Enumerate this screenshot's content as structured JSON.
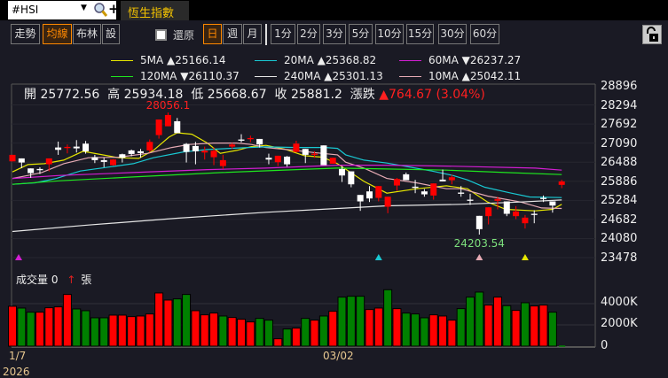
{
  "toolbar": {
    "symbol": "#HSI",
    "tab_title": "恆生指數",
    "view_buttons": [
      {
        "label": "走勢",
        "active": false
      },
      {
        "label": "均線",
        "active": true
      },
      {
        "label": "布林",
        "active": false
      },
      {
        "label": "設",
        "active": false
      }
    ],
    "restore_label": "還原",
    "restore_checked": false,
    "period_buttons": [
      {
        "label": "日",
        "active": true
      },
      {
        "label": "週",
        "active": false
      },
      {
        "label": "月",
        "active": false
      }
    ],
    "minute_buttons": [
      "1分",
      "2分",
      "3分",
      "5分",
      "10分",
      "15分",
      "30分",
      "60分"
    ]
  },
  "legend": [
    {
      "label": "5MA",
      "dir": "▲",
      "value": "25166.14",
      "color": "#e6e600"
    },
    {
      "label": "20MA",
      "dir": "▲",
      "value": "25368.82",
      "color": "#19c8d2"
    },
    {
      "label": "60MA",
      "dir": "▼",
      "value": "26237.27",
      "color": "#d21ed2"
    },
    {
      "label": "120MA",
      "dir": "▼",
      "value": "26110.37",
      "color": "#1ee61e"
    },
    {
      "label": "240MA",
      "dir": "▲",
      "value": "25301.13",
      "color": "#e6e6e6"
    },
    {
      "label": "10MA",
      "dir": "▲",
      "value": "25042.11",
      "color": "#e6aab4"
    }
  ],
  "info": {
    "open_label": "開",
    "open": "25772.56",
    "high_label": "高",
    "high": "25934.18",
    "low_label": "低",
    "low": "25668.67",
    "close_label": "收",
    "close": "25881.2",
    "change_label": "漲跌",
    "change": "▲764.67 (3.04%)"
  },
  "volume": {
    "label": "成交量",
    "value": "0",
    "arrow": "↑",
    "unit": "張"
  },
  "colors": {
    "up": "#ff0000",
    "down": "#ffffff",
    "vol_up": "#ff0000",
    "vol_down": "#008000"
  },
  "chart_data": {
    "type": "candlestick",
    "price_ticks": [
      "28896",
      "28294",
      "27692",
      "27090",
      "26488",
      "25886",
      "25284",
      "24682",
      "24080",
      "23478"
    ],
    "price_range": [
      23478,
      28896
    ],
    "volume_ticks": [
      "4000K",
      "2000K",
      "0"
    ],
    "volume_range": [
      0,
      6000
    ],
    "x_labels": [
      {
        "index": 0,
        "label": "1/7"
      },
      {
        "index": 36,
        "label": "03/02"
      }
    ],
    "year_label": "2026",
    "annotations": [
      {
        "index": 17,
        "text": "28056.1",
        "color": "#ff2020",
        "pos": "above"
      },
      {
        "index": 51,
        "text": "24203.54",
        "color": "#7de07d",
        "pos": "below"
      }
    ],
    "markers": [
      {
        "index": 0,
        "color": "#d21ed2"
      },
      {
        "index": 40,
        "color": "#19c8d2"
      },
      {
        "index": 51,
        "color": "#e6aab4"
      },
      {
        "index": 56,
        "color": "#e6e600"
      }
    ],
    "ohlc": [
      [
        26515,
        26720,
        26515,
        26720
      ],
      [
        26608,
        26608,
        26301,
        26478
      ],
      [
        26292,
        26292,
        25995,
        26143
      ],
      [
        26274,
        26329,
        26116,
        26236
      ],
      [
        26422,
        26608,
        26199,
        26608
      ],
      [
        26952,
        27138,
        26720,
        26878
      ],
      [
        26934,
        27046,
        26767,
        26971
      ],
      [
        26980,
        27185,
        26794,
        26925
      ],
      [
        27073,
        27157,
        26757,
        26832
      ],
      [
        26646,
        26720,
        26460,
        26553
      ],
      [
        26553,
        26627,
        26329,
        26497
      ],
      [
        26395,
        26580,
        26380,
        26571
      ],
      [
        26739,
        26757,
        26478,
        26627
      ],
      [
        26860,
        26887,
        26674,
        26748
      ],
      [
        26832,
        26906,
        26627,
        26776
      ],
      [
        26860,
        27204,
        26794,
        27129
      ],
      [
        27343,
        27836,
        27232,
        27836
      ],
      [
        27622,
        28056,
        27622,
        27976
      ],
      [
        27780,
        27883,
        27408,
        27408
      ],
      [
        27064,
        27092,
        26478,
        26813
      ],
      [
        26999,
        27129,
        26422,
        26832
      ],
      [
        26794,
        26980,
        26571,
        26850
      ],
      [
        26646,
        26952,
        26395,
        26850
      ],
      [
        26367,
        26720,
        26274,
        26553
      ],
      [
        26980,
        27092,
        26906,
        27046
      ],
      [
        27204,
        27371,
        27111,
        27166
      ],
      [
        27213,
        27325,
        27120,
        27250
      ],
      [
        27222,
        27222,
        26952,
        27046
      ],
      [
        26627,
        26757,
        26422,
        26571
      ],
      [
        26488,
        26692,
        26367,
        26692
      ],
      [
        26664,
        26683,
        26348,
        26422
      ],
      [
        26813,
        27166,
        26794,
        27073
      ],
      [
        26906,
        26906,
        26460,
        26720
      ],
      [
        26720,
        26832,
        26627,
        26757
      ],
      [
        27018,
        27018,
        26395,
        26395
      ],
      [
        26441,
        26627,
        26441,
        26627
      ],
      [
        26274,
        26367,
        25864,
        26069
      ],
      [
        26199,
        26199,
        25697,
        25790
      ],
      [
        25455,
        25455,
        24953,
        25251
      ],
      [
        25567,
        25734,
        25232,
        25344
      ],
      [
        25362,
        25734,
        25251,
        25734
      ],
      [
        25083,
        25399,
        24879,
        25399
      ],
      [
        25753,
        25990,
        25585,
        25957
      ],
      [
        26106,
        26162,
        25920,
        25920
      ],
      [
        25716,
        25930,
        25511,
        25678
      ],
      [
        25567,
        25641,
        25399,
        25474
      ],
      [
        25437,
        25818,
        25306,
        25818
      ],
      [
        25939,
        26255,
        25883,
        25883
      ],
      [
        25920,
        26088,
        25790,
        26013
      ],
      [
        25530,
        25734,
        25399,
        25492
      ],
      [
        25306,
        25492,
        25139,
        25269
      ],
      [
        24795,
        24795,
        24204,
        24376
      ],
      [
        24786,
        25065,
        24525,
        25065
      ],
      [
        25269,
        25399,
        24999,
        25325
      ],
      [
        25251,
        25251,
        24786,
        24860
      ],
      [
        24786,
        25102,
        24693,
        24934
      ],
      [
        24562,
        24823,
        24395,
        24739
      ],
      [
        24860,
        24972,
        24562,
        24823
      ],
      [
        25362,
        25437,
        25232,
        25325
      ],
      [
        25251,
        25251,
        24897,
        25120
      ],
      [
        25772.56,
        25934.18,
        25668.67,
        25881.2
      ]
    ],
    "volume_k": [
      3753,
      3586,
      3197,
      3197,
      3614,
      3697,
      4865,
      3503,
      3336,
      2669,
      2669,
      2919,
      2919,
      2780,
      2836,
      3030,
      5004,
      4337,
      4448,
      4865,
      3336,
      2947,
      3114,
      2836,
      2697,
      2530,
      2280,
      2613,
      2446,
      695,
      1612,
      1696,
      2613,
      2446,
      2836,
      3280,
      4615,
      4698,
      4698,
      3447,
      3586,
      5310,
      3531,
      3114,
      3030,
      2669,
      2947,
      2836,
      2446,
      3531,
      4615,
      5087,
      3864,
      4615,
      3809,
      3364,
      4087,
      3781,
      3864,
      3197,
      0
    ],
    "volume_up": [
      1,
      0,
      0,
      1,
      1,
      1,
      1,
      0,
      0,
      0,
      0,
      1,
      1,
      1,
      1,
      1,
      1,
      1,
      0,
      0,
      1,
      1,
      1,
      0,
      1,
      1,
      1,
      0,
      0,
      1,
      0,
      1,
      0,
      1,
      0,
      1,
      0,
      0,
      0,
      1,
      1,
      0,
      1,
      0,
      0,
      0,
      1,
      1,
      1,
      0,
      0,
      0,
      1,
      1,
      0,
      1,
      0,
      1,
      1,
      0,
      0
    ],
    "ma": [
      {
        "name": "5MA",
        "color": "#e6e600",
        "points": [
          [
            0,
            26181
          ],
          [
            1.7,
            26413
          ],
          [
            3.5,
            26441
          ],
          [
            5.6,
            26553
          ],
          [
            7.7,
            26832
          ],
          [
            11.6,
            26627
          ],
          [
            13.8,
            26608
          ],
          [
            15.4,
            26860
          ],
          [
            17.1,
            27278
          ],
          [
            18,
            27417
          ],
          [
            19.6,
            27371
          ],
          [
            21.3,
            27092
          ],
          [
            22.7,
            26767
          ],
          [
            24.5,
            26860
          ],
          [
            26.1,
            26980
          ],
          [
            27.7,
            27018
          ],
          [
            29.7,
            26906
          ],
          [
            31.9,
            26692
          ],
          [
            33.9,
            26646
          ],
          [
            35.5,
            26441
          ],
          [
            38.4,
            25883
          ],
          [
            40.9,
            25511
          ],
          [
            44.2,
            25651
          ],
          [
            47.4,
            25744
          ],
          [
            49.7,
            25651
          ],
          [
            51.9,
            25232
          ],
          [
            53.9,
            25000
          ],
          [
            57.1,
            24953
          ],
          [
            59,
            25000
          ],
          [
            60,
            25158
          ]
        ]
      },
      {
        "name": "10MA",
        "color": "#e6aab4",
        "points": [
          [
            0,
            25976
          ],
          [
            1.7,
            26069
          ],
          [
            3.2,
            26162
          ],
          [
            5.6,
            26441
          ],
          [
            8.3,
            26627
          ],
          [
            11.6,
            26646
          ],
          [
            14.8,
            26767
          ],
          [
            17.4,
            26952
          ],
          [
            19.3,
            27046
          ],
          [
            21.9,
            27092
          ],
          [
            24.5,
            27092
          ],
          [
            26.1,
            27046
          ],
          [
            27.7,
            26952
          ],
          [
            30.9,
            26860
          ],
          [
            32.9,
            26794
          ],
          [
            35.5,
            26720
          ],
          [
            36.4,
            26488
          ],
          [
            38.4,
            26302
          ],
          [
            40.9,
            25976
          ],
          [
            44.2,
            25836
          ],
          [
            47.4,
            25651
          ],
          [
            49,
            25651
          ],
          [
            51.9,
            25418
          ],
          [
            55.5,
            25232
          ],
          [
            57.8,
            25046
          ],
          [
            60,
            25027
          ]
        ]
      },
      {
        "name": "20MA",
        "color": "#19c8d2",
        "points": [
          [
            0,
            25790
          ],
          [
            2.5,
            25837
          ],
          [
            4.8,
            25976
          ],
          [
            7.4,
            26209
          ],
          [
            10.9,
            26348
          ],
          [
            13.2,
            26441
          ],
          [
            15.4,
            26627
          ],
          [
            18.7,
            26813
          ],
          [
            21.3,
            26887
          ],
          [
            25.8,
            26952
          ],
          [
            27.7,
            26971
          ],
          [
            31,
            26952
          ],
          [
            34.2,
            26952
          ],
          [
            35.5,
            26925
          ],
          [
            36.4,
            26720
          ],
          [
            38.4,
            26553
          ],
          [
            40.9,
            26460
          ],
          [
            43.5,
            26329
          ],
          [
            45.8,
            26209
          ],
          [
            48.1,
            26069
          ],
          [
            49.7,
            25930
          ],
          [
            51.6,
            25697
          ],
          [
            54.5,
            25511
          ],
          [
            56.5,
            25390
          ],
          [
            60,
            25372
          ]
        ]
      },
      {
        "name": "60MA",
        "color": "#d21ed2",
        "points": [
          [
            0,
            25976
          ],
          [
            5.2,
            26069
          ],
          [
            13.2,
            26162
          ],
          [
            21.3,
            26255
          ],
          [
            27.7,
            26302
          ],
          [
            35.5,
            26395
          ],
          [
            40.9,
            26395
          ],
          [
            47.4,
            26367
          ],
          [
            57.1,
            26302
          ],
          [
            60,
            26237
          ]
        ]
      },
      {
        "name": "120MA",
        "color": "#1ee61e",
        "points": [
          [
            0,
            25790
          ],
          [
            5.2,
            25902
          ],
          [
            13.2,
            26023
          ],
          [
            22.9,
            26162
          ],
          [
            31,
            26255
          ],
          [
            35.5,
            26302
          ],
          [
            40.9,
            26274
          ],
          [
            47.4,
            26237
          ],
          [
            53.9,
            26162
          ],
          [
            60,
            26097
          ]
        ]
      },
      {
        "name": "240MA",
        "color": "#e6e6e6",
        "points": [
          [
            0,
            24302
          ],
          [
            8.3,
            24507
          ],
          [
            18,
            24721
          ],
          [
            27.7,
            24907
          ],
          [
            35.5,
            25027
          ],
          [
            40.9,
            25111
          ],
          [
            49,
            25158
          ],
          [
            55.5,
            25232
          ],
          [
            60,
            25297
          ]
        ]
      }
    ]
  }
}
